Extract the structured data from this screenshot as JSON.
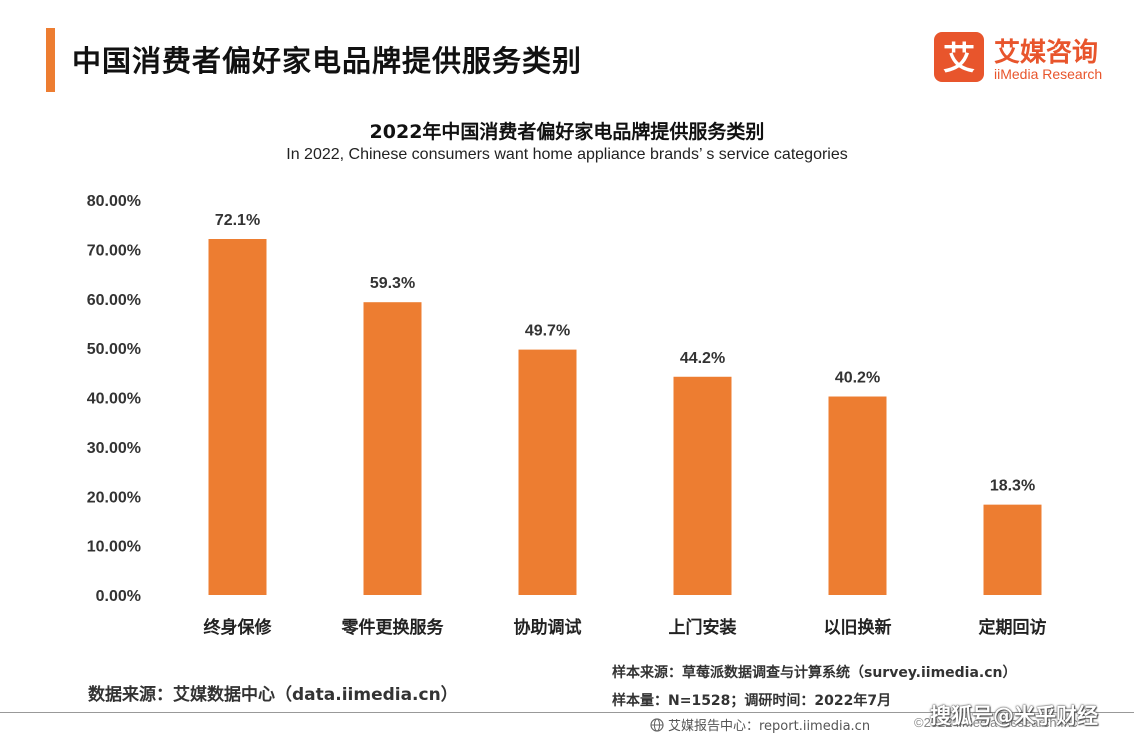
{
  "header": {
    "title": "中国消费者偏好家电品牌提供服务类别",
    "accent_color": "#ed7d31"
  },
  "logo": {
    "glyph": "艾",
    "name_cn": "艾媒咨询",
    "name_en": "iiMedia Research",
    "color": "#e8552c"
  },
  "chart_data": {
    "type": "bar",
    "title": "2022年中国消费者偏好家电品牌提供服务类别",
    "subtitle": "In 2022, Chinese consumers want home appliance brands’ s service categories",
    "categories": [
      "终身保修",
      "零件更换服务",
      "协助调试",
      "上门安装",
      "以旧换新",
      "定期回访"
    ],
    "values": [
      72.1,
      59.3,
      49.7,
      44.2,
      40.2,
      18.3
    ],
    "data_labels": [
      "72.1%",
      "59.3%",
      "49.7%",
      "44.2%",
      "40.2%",
      "18.3%"
    ],
    "y_ticks": [
      "0.00%",
      "10.00%",
      "20.00%",
      "30.00%",
      "40.00%",
      "50.00%",
      "60.00%",
      "70.00%",
      "80.00%"
    ],
    "ylim": [
      0,
      80
    ],
    "grid": false,
    "bar_color": "#ed7d31"
  },
  "footer": {
    "source_left": "数据来源：艾媒数据中心（data.iimedia.cn）",
    "sample_source": "样本来源：草莓派数据调查与计算系统（survey.iimedia.cn）",
    "sample_size": "样本量：N=1528；调研时间：2022年7月",
    "report_center": "艾媒报告中心：report.iimedia.cn",
    "copyright": "©2022  iiMedia Research  Inc",
    "watermark": "搜狐号@米乎财经"
  }
}
